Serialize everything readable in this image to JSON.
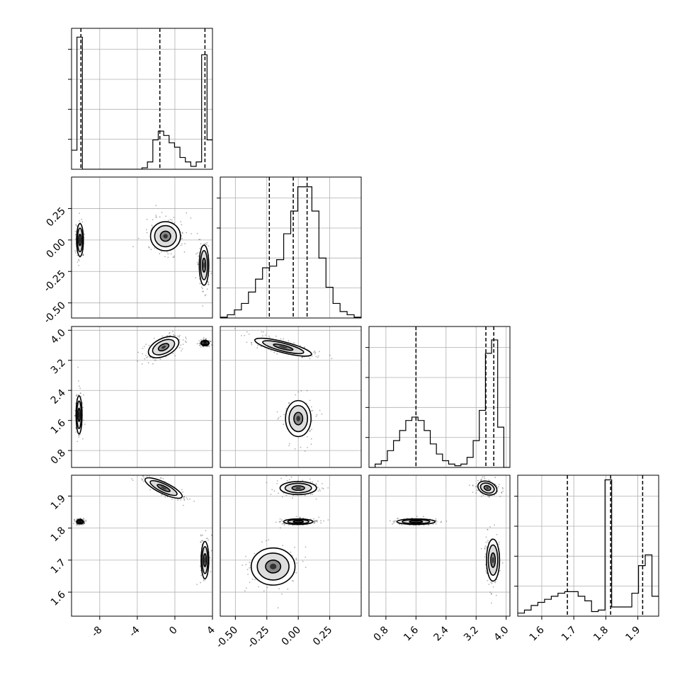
{
  "chart_data": {
    "type": "corner",
    "parameters": [
      {
        "range": [
          -11.0,
          4.0
        ],
        "ticks": [
          "-8",
          "-4",
          "0",
          "4"
        ],
        "tick_values": [
          -8,
          -4,
          0,
          4
        ],
        "quantiles": [
          -10.0,
          -1.6,
          3.2
        ]
      },
      {
        "range": [
          -0.62,
          0.5
        ],
        "ticks": [
          "-0.50",
          "-0.25",
          "0.00",
          "0.25"
        ],
        "tick_values": [
          -0.5,
          -0.25,
          0.0,
          0.25
        ],
        "quantiles": [
          -0.23,
          -0.04,
          0.07
        ]
      },
      {
        "range": [
          0.35,
          4.1
        ],
        "ticks": [
          "0.8",
          "1.6",
          "2.4",
          "3.2",
          "4.0"
        ],
        "tick_values": [
          0.8,
          1.6,
          2.4,
          3.2,
          4.0
        ],
        "quantiles": [
          1.6,
          3.46,
          3.67
        ]
      },
      {
        "range": [
          1.525,
          1.965
        ],
        "ticks": [
          "1.6",
          "1.7",
          "1.8",
          "1.9"
        ],
        "tick_values": [
          1.6,
          1.7,
          1.8,
          1.9
        ],
        "quantiles": [
          1.68,
          1.815,
          1.915
        ]
      }
    ],
    "histograms": [
      {
        "bins": [
          -11.0,
          4.0
        ],
        "counts": [
          0.13,
          0.9,
          0,
          0,
          0,
          0,
          0,
          0,
          0,
          0,
          0,
          0,
          0,
          0.01,
          0.05,
          0.2,
          0.26,
          0.23,
          0.18,
          0.15,
          0.08,
          0.05,
          0.02,
          0.05,
          0.78,
          0.2
        ],
        "ymax": 0.96
      },
      {
        "bins": [
          -0.62,
          0.5
        ],
        "counts": [
          0.005,
          0.02,
          0.05,
          0.09,
          0.16,
          0.24,
          0.31,
          0.32,
          0.36,
          0.52,
          0.66,
          0.81,
          0.81,
          0.66,
          0.37,
          0.19,
          0.09,
          0.04,
          0.02,
          0.005
        ],
        "ymax": 0.87
      },
      {
        "bins": [
          0.35,
          4.1
        ],
        "counts": [
          0,
          0.01,
          0.02,
          0.05,
          0.08,
          0.11,
          0.14,
          0.15,
          0.14,
          0.11,
          0.07,
          0.04,
          0.02,
          0.01,
          0.005,
          0.01,
          0.03,
          0.08,
          0.17,
          0.34,
          0.38,
          0.12,
          0.0
        ],
        "ymax": 0.42
      },
      {
        "bins": [
          1.525,
          1.965
        ],
        "counts": [
          0.02,
          0.04,
          0.07,
          0.09,
          0.11,
          0.13,
          0.15,
          0.16,
          0.16,
          0.13,
          0.1,
          0.03,
          0.04,
          0.89,
          0.06,
          0.06,
          0.06,
          0.15,
          0.33,
          0.4,
          0.13
        ],
        "ymax": 0.92
      }
    ],
    "scatter_panels": [
      {
        "x": 0,
        "y": 1,
        "blobs": [
          {
            "cx": -10.1,
            "cy": 0.0,
            "sx": 0.25,
            "sy": 0.09,
            "rot": 0
          },
          {
            "cx": -1.0,
            "cy": 0.03,
            "sx": 1.1,
            "sy": 0.08,
            "rot": 0
          },
          {
            "cx": 3.1,
            "cy": -0.2,
            "sx": 0.35,
            "sy": 0.11,
            "rot": 0
          }
        ]
      },
      {
        "x": 0,
        "y": 2,
        "blobs": [
          {
            "cx": -10.2,
            "cy": 1.75,
            "sx": 0.22,
            "sy": 0.35,
            "rot": 0
          },
          {
            "cx": -1.2,
            "cy": 3.55,
            "sx": 1.2,
            "sy": 0.16,
            "rot": 0.45
          },
          {
            "cx": 3.2,
            "cy": 3.66,
            "sx": 0.3,
            "sy": 0.05,
            "rot": 0
          }
        ]
      },
      {
        "x": 1,
        "y": 2,
        "blobs": [
          {
            "cx": -0.12,
            "cy": 3.55,
            "sx": 0.16,
            "sy": 0.1,
            "rot": -0.25
          },
          {
            "cx": 0.0,
            "cy": 1.65,
            "sx": 0.07,
            "sy": 0.33,
            "rot": 0
          }
        ]
      },
      {
        "x": 0,
        "y": 3,
        "blobs": [
          {
            "cx": -10.1,
            "cy": 1.82,
            "sx": 0.25,
            "sy": 0.005,
            "rot": 0
          },
          {
            "cx": -1.2,
            "cy": 1.925,
            "sx": 1.5,
            "sy": 0.012,
            "rot": -0.45
          },
          {
            "cx": 3.2,
            "cy": 1.7,
            "sx": 0.28,
            "sy": 0.04,
            "rot": 0
          }
        ]
      },
      {
        "x": 1,
        "y": 3,
        "blobs": [
          {
            "cx": 0.0,
            "cy": 1.925,
            "sx": 0.1,
            "sy": 0.014,
            "rot": 0
          },
          {
            "cx": 0.0,
            "cy": 1.82,
            "sx": 0.08,
            "sy": 0.006,
            "rot": 0
          },
          {
            "cx": -0.2,
            "cy": 1.68,
            "sx": 0.12,
            "sy": 0.04,
            "rot": 0
          }
        ]
      },
      {
        "x": 2,
        "y": 3,
        "blobs": [
          {
            "cx": 1.6,
            "cy": 1.82,
            "sx": 0.35,
            "sy": 0.006,
            "rot": 0
          },
          {
            "cx": 3.5,
            "cy": 1.925,
            "sx": 0.18,
            "sy": 0.014,
            "rot": -0.35
          },
          {
            "cx": 3.65,
            "cy": 1.7,
            "sx": 0.12,
            "sy": 0.045,
            "rot": 0
          }
        ]
      }
    ],
    "grid": true
  }
}
